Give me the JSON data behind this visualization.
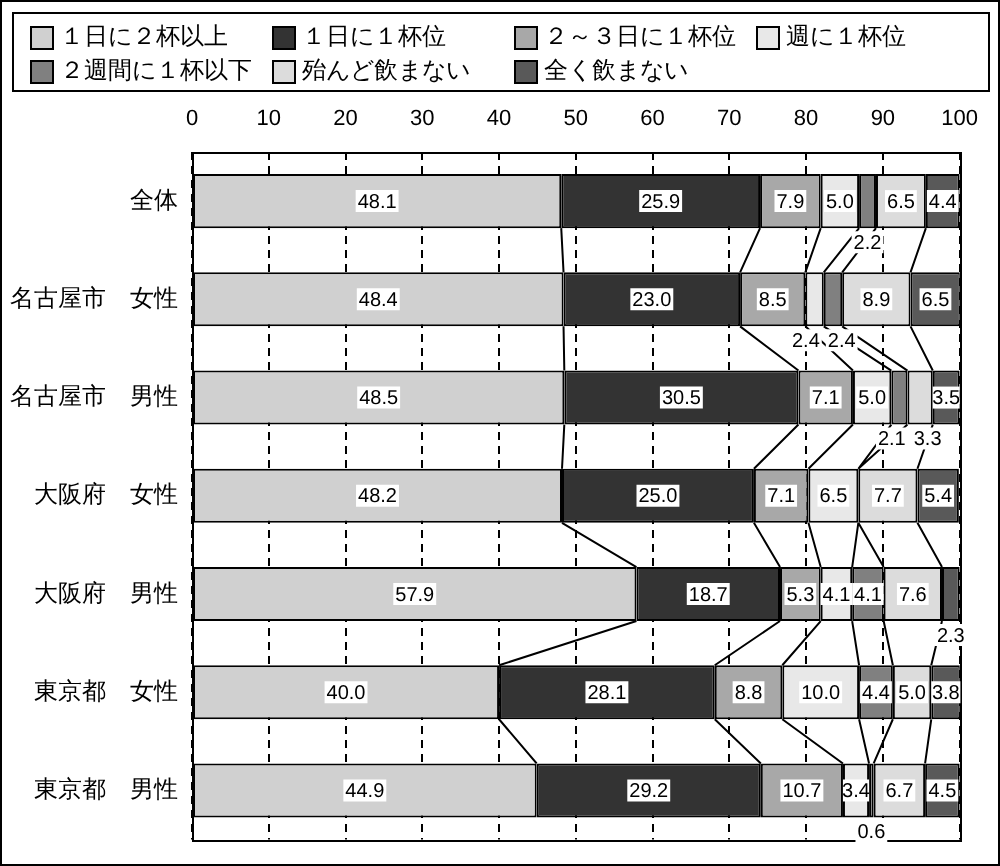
{
  "chart_data": {
    "type": "bar",
    "orientation": "horizontal",
    "stacked": true,
    "categories": [
      "全体",
      "名古屋市　女性",
      "名古屋市　男性",
      "大阪府　女性",
      "大阪府　男性",
      "東京都　女性",
      "東京都　男性"
    ],
    "series": [
      {
        "name": "１日に２杯以上",
        "color": "#d0d0d0",
        "values": [
          48.1,
          48.4,
          48.5,
          48.2,
          57.9,
          40.0,
          44.9
        ],
        "value_labels": [
          "48.1",
          "48.4",
          "48.5",
          "48.2",
          "57.9",
          "40.0",
          "44.9"
        ]
      },
      {
        "name": "１日に１杯位",
        "color": "#333333",
        "values": [
          25.9,
          23.0,
          30.5,
          25.0,
          18.7,
          28.1,
          29.2
        ],
        "value_labels": [
          "25.9",
          "23.0",
          "30.5",
          "25.0",
          "18.7",
          "28.1",
          "29.2"
        ]
      },
      {
        "name": "２～３日に１杯位",
        "color": "#a8a8a8",
        "values": [
          7.9,
          8.5,
          7.1,
          7.1,
          5.3,
          8.8,
          10.7
        ],
        "value_labels": [
          "7.9",
          "8.5",
          "7.1",
          "7.1",
          "5.3",
          "8.8",
          "10.7"
        ]
      },
      {
        "name": "週に１杯位",
        "color": "#e8e8e8",
        "values": [
          5.0,
          2.4,
          5.0,
          6.5,
          4.1,
          10.0,
          3.4
        ],
        "value_labels": [
          "5.0",
          "2.4",
          "5.0",
          "6.5",
          "4.1",
          "10.0",
          "3.4"
        ]
      },
      {
        "name": "２週間に１杯以下",
        "color": "#808080",
        "values": [
          2.2,
          2.4,
          2.1,
          null,
          4.1,
          4.4,
          0.6
        ],
        "value_labels": [
          "2.2",
          "2.4",
          "2.1",
          null,
          "4.1",
          "4.4",
          "0.6"
        ]
      },
      {
        "name": "殆んど飲まない",
        "color": "#dcdcdc",
        "values": [
          6.5,
          8.9,
          3.3,
          7.7,
          7.6,
          5.0,
          6.7
        ],
        "value_labels": [
          "6.5",
          "8.9",
          "3.3",
          "7.7",
          "7.6",
          "5.0",
          "6.7"
        ]
      },
      {
        "name": "全く飲まない",
        "color": "#595959",
        "values": [
          4.4,
          6.5,
          3.5,
          5.4,
          2.3,
          3.8,
          4.5
        ],
        "value_labels": [
          "4.4",
          "6.5",
          "3.5",
          "5.4",
          "2.3",
          "3.8",
          "4.5"
        ]
      }
    ],
    "xlim": [
      0,
      100
    ],
    "xticks": [
      0,
      10,
      20,
      30,
      40,
      50,
      60,
      70,
      80,
      90,
      100
    ],
    "grid": "x",
    "legend": "top"
  }
}
